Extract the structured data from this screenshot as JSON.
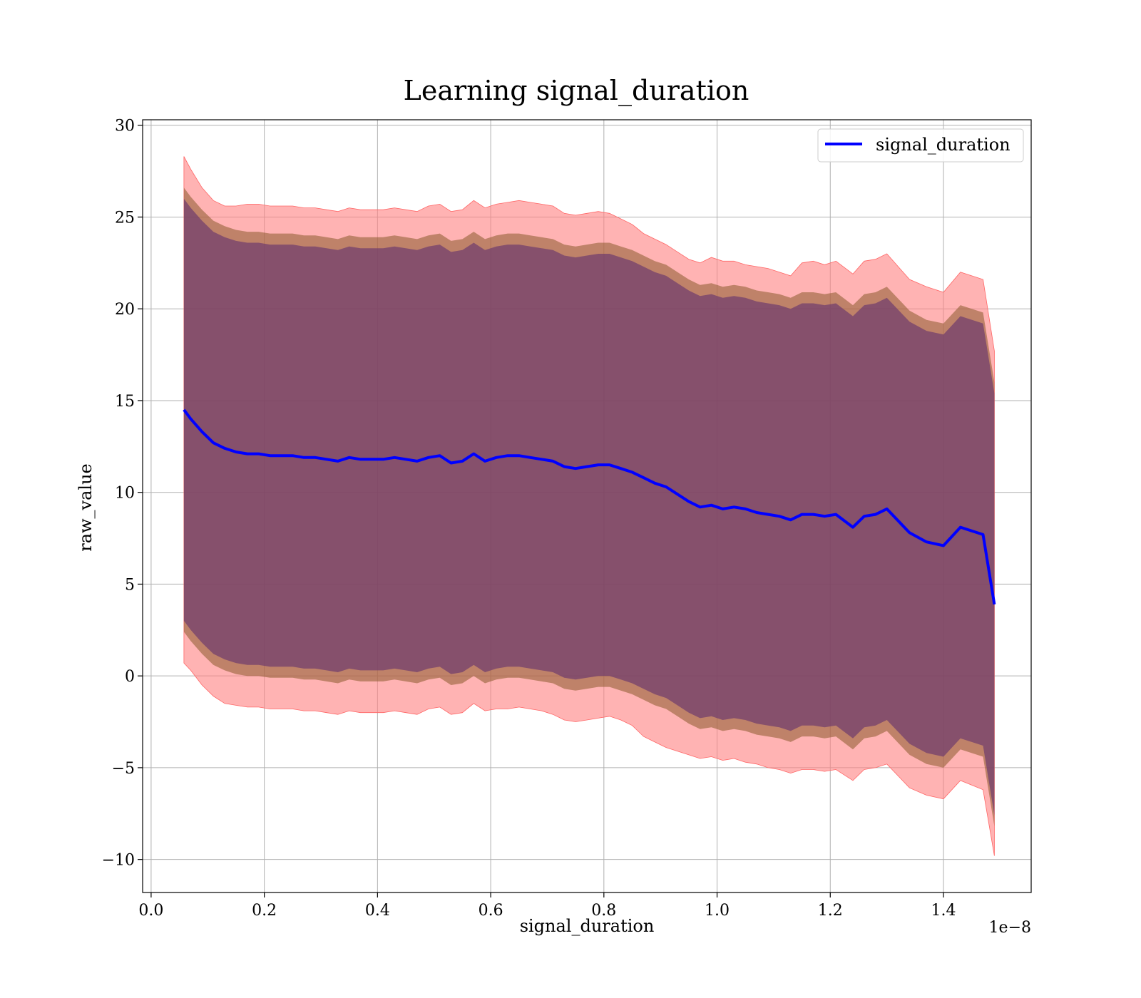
{
  "chart_data": {
    "type": "line",
    "title": "Learning signal_duration",
    "xlabel": "signal_duration",
    "ylabel": "raw_value",
    "x_offset_label": "1e−8",
    "xlim": [
      -0.015,
      1.555
    ],
    "ylim": [
      -11.8,
      30.3
    ],
    "x_ticks": [
      0.0,
      0.2,
      0.4,
      0.6,
      0.8,
      1.0,
      1.2,
      1.4
    ],
    "x_tick_labels": [
      "0.0",
      "0.2",
      "0.4",
      "0.6",
      "0.8",
      "1.0",
      "1.2",
      "1.4"
    ],
    "y_ticks": [
      -10,
      -5,
      0,
      5,
      10,
      15,
      20,
      25,
      30
    ],
    "y_tick_labels": [
      "−10",
      "−5",
      "0",
      "5",
      "10",
      "15",
      "20",
      "25",
      "30"
    ],
    "grid": true,
    "legend_position": "top-right",
    "colors": {
      "line": "#0000ff",
      "band_outer": "#ff8080",
      "band_mid": "#8b5a2b",
      "band_inner": "#6e3a6e"
    },
    "x": [
      0.058,
      0.07,
      0.09,
      0.11,
      0.13,
      0.15,
      0.17,
      0.19,
      0.21,
      0.23,
      0.25,
      0.27,
      0.29,
      0.31,
      0.33,
      0.35,
      0.37,
      0.39,
      0.41,
      0.43,
      0.45,
      0.47,
      0.49,
      0.51,
      0.53,
      0.55,
      0.57,
      0.59,
      0.61,
      0.63,
      0.65,
      0.67,
      0.69,
      0.71,
      0.73,
      0.75,
      0.77,
      0.79,
      0.81,
      0.83,
      0.85,
      0.87,
      0.89,
      0.91,
      0.93,
      0.95,
      0.97,
      0.99,
      1.01,
      1.03,
      1.05,
      1.07,
      1.09,
      1.11,
      1.13,
      1.15,
      1.17,
      1.19,
      1.21,
      1.24,
      1.26,
      1.28,
      1.3,
      1.34,
      1.37,
      1.4,
      1.43,
      1.47,
      1.49
    ],
    "series": [
      {
        "name": "signal_duration",
        "mean": [
          14.5,
          14.0,
          13.3,
          12.7,
          12.4,
          12.2,
          12.1,
          12.1,
          12.0,
          12.0,
          12.0,
          11.9,
          11.9,
          11.8,
          11.7,
          11.9,
          11.8,
          11.8,
          11.8,
          11.9,
          11.8,
          11.7,
          11.9,
          12.0,
          11.6,
          11.7,
          12.1,
          11.7,
          11.9,
          12.0,
          12.0,
          11.9,
          11.8,
          11.7,
          11.4,
          11.3,
          11.4,
          11.5,
          11.5,
          11.3,
          11.1,
          10.8,
          10.5,
          10.3,
          9.9,
          9.5,
          9.2,
          9.3,
          9.1,
          9.2,
          9.1,
          8.9,
          8.8,
          8.7,
          8.5,
          8.8,
          8.8,
          8.7,
          8.8,
          8.1,
          8.7,
          8.8,
          9.1,
          7.8,
          7.3,
          7.1,
          8.1,
          7.7,
          3.9
        ],
        "band_inner_upper": [
          26.0,
          25.5,
          24.8,
          24.2,
          23.9,
          23.7,
          23.6,
          23.6,
          23.5,
          23.5,
          23.5,
          23.4,
          23.4,
          23.3,
          23.2,
          23.4,
          23.3,
          23.3,
          23.3,
          23.4,
          23.3,
          23.2,
          23.4,
          23.5,
          23.1,
          23.2,
          23.6,
          23.2,
          23.4,
          23.5,
          23.5,
          23.4,
          23.3,
          23.2,
          22.9,
          22.8,
          22.9,
          23.0,
          23.0,
          22.8,
          22.6,
          22.3,
          22.0,
          21.8,
          21.4,
          21.0,
          20.7,
          20.8,
          20.6,
          20.7,
          20.6,
          20.4,
          20.3,
          20.2,
          20.0,
          20.3,
          20.3,
          20.2,
          20.3,
          19.6,
          20.2,
          20.3,
          20.6,
          19.3,
          18.8,
          18.6,
          19.6,
          19.2,
          15.4
        ],
        "band_inner_lower": [
          3.0,
          2.5,
          1.8,
          1.2,
          0.9,
          0.7,
          0.6,
          0.6,
          0.5,
          0.5,
          0.5,
          0.4,
          0.4,
          0.3,
          0.2,
          0.4,
          0.3,
          0.3,
          0.3,
          0.4,
          0.3,
          0.2,
          0.4,
          0.5,
          0.1,
          0.2,
          0.6,
          0.2,
          0.4,
          0.5,
          0.5,
          0.4,
          0.3,
          0.2,
          -0.1,
          -0.2,
          -0.1,
          0.0,
          0.0,
          -0.2,
          -0.4,
          -0.7,
          -1.0,
          -1.2,
          -1.6,
          -2.0,
          -2.3,
          -2.2,
          -2.4,
          -2.3,
          -2.4,
          -2.6,
          -2.7,
          -2.8,
          -3.0,
          -2.7,
          -2.7,
          -2.8,
          -2.7,
          -3.4,
          -2.8,
          -2.7,
          -2.4,
          -3.7,
          -4.2,
          -4.4,
          -3.4,
          -3.8,
          -7.6
        ],
        "band_mid_upper": [
          26.6,
          26.1,
          25.4,
          24.8,
          24.5,
          24.3,
          24.2,
          24.2,
          24.1,
          24.1,
          24.1,
          24.0,
          24.0,
          23.9,
          23.8,
          24.0,
          23.9,
          23.9,
          23.9,
          24.0,
          23.9,
          23.8,
          24.0,
          24.1,
          23.7,
          23.8,
          24.2,
          23.8,
          24.0,
          24.1,
          24.1,
          24.0,
          23.9,
          23.8,
          23.5,
          23.4,
          23.5,
          23.6,
          23.6,
          23.4,
          23.2,
          22.9,
          22.6,
          22.4,
          22.0,
          21.6,
          21.3,
          21.4,
          21.2,
          21.3,
          21.2,
          21.0,
          20.9,
          20.8,
          20.6,
          20.9,
          20.9,
          20.8,
          20.9,
          20.2,
          20.8,
          20.9,
          21.2,
          19.9,
          19.4,
          19.2,
          20.2,
          19.8,
          16.0
        ],
        "band_mid_lower": [
          2.4,
          1.9,
          1.2,
          0.6,
          0.3,
          0.1,
          0.0,
          0.0,
          -0.1,
          -0.1,
          -0.1,
          -0.2,
          -0.2,
          -0.3,
          -0.4,
          -0.2,
          -0.3,
          -0.3,
          -0.3,
          -0.2,
          -0.3,
          -0.4,
          -0.2,
          -0.1,
          -0.5,
          -0.4,
          0.0,
          -0.4,
          -0.2,
          -0.1,
          -0.1,
          -0.2,
          -0.3,
          -0.4,
          -0.7,
          -0.8,
          -0.7,
          -0.6,
          -0.6,
          -0.8,
          -1.0,
          -1.3,
          -1.6,
          -1.8,
          -2.2,
          -2.6,
          -2.9,
          -2.8,
          -3.0,
          -2.9,
          -3.0,
          -3.2,
          -3.3,
          -3.4,
          -3.6,
          -3.3,
          -3.3,
          -3.4,
          -3.3,
          -4.0,
          -3.4,
          -3.3,
          -3.0,
          -4.3,
          -4.8,
          -5.0,
          -4.0,
          -4.4,
          -8.2
        ],
        "band_outer_upper": [
          28.3,
          27.6,
          26.6,
          25.9,
          25.6,
          25.6,
          25.7,
          25.7,
          25.6,
          25.6,
          25.6,
          25.5,
          25.5,
          25.4,
          25.3,
          25.5,
          25.4,
          25.4,
          25.4,
          25.5,
          25.4,
          25.3,
          25.6,
          25.7,
          25.3,
          25.4,
          25.9,
          25.5,
          25.7,
          25.8,
          25.9,
          25.8,
          25.7,
          25.6,
          25.2,
          25.1,
          25.2,
          25.3,
          25.2,
          24.9,
          24.6,
          24.1,
          23.8,
          23.5,
          23.1,
          22.7,
          22.5,
          22.8,
          22.6,
          22.6,
          22.4,
          22.3,
          22.2,
          22.0,
          21.8,
          22.5,
          22.6,
          22.4,
          22.6,
          21.9,
          22.6,
          22.7,
          23.0,
          21.6,
          21.2,
          20.9,
          22.0,
          21.6,
          17.7
        ],
        "band_outer_lower": [
          0.7,
          0.3,
          -0.5,
          -1.1,
          -1.5,
          -1.6,
          -1.7,
          -1.7,
          -1.8,
          -1.8,
          -1.8,
          -1.9,
          -1.9,
          -2.0,
          -2.1,
          -1.9,
          -2.0,
          -2.0,
          -2.0,
          -1.9,
          -2.0,
          -2.1,
          -1.8,
          -1.7,
          -2.1,
          -2.0,
          -1.5,
          -1.9,
          -1.8,
          -1.8,
          -1.7,
          -1.8,
          -1.9,
          -2.1,
          -2.4,
          -2.5,
          -2.4,
          -2.3,
          -2.2,
          -2.4,
          -2.7,
          -3.3,
          -3.6,
          -3.9,
          -4.1,
          -4.3,
          -4.5,
          -4.4,
          -4.6,
          -4.5,
          -4.7,
          -4.8,
          -5.0,
          -5.1,
          -5.3,
          -5.1,
          -5.1,
          -5.2,
          -5.1,
          -5.7,
          -5.1,
          -5.0,
          -4.8,
          -6.1,
          -6.5,
          -6.7,
          -5.7,
          -6.2,
          -9.8
        ]
      }
    ]
  }
}
